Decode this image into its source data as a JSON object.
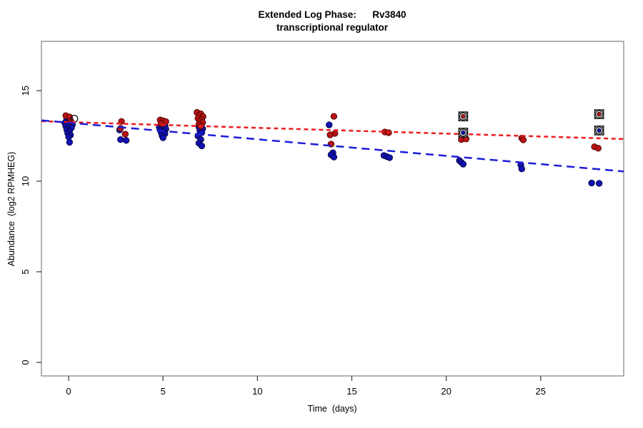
{
  "title": {
    "line1": "Extended Log Phase:      Rv3840",
    "line2": "transcriptional regulator"
  },
  "chart_data": {
    "type": "scatter",
    "title": "Extended Log Phase: Rv3840 transcriptional regulator",
    "xlabel": "Time  (days)",
    "ylabel": "Abundance  (log2 RPMHEG)",
    "xlim": [
      -1.44,
      29.4
    ],
    "ylim": [
      -0.75,
      17.72
    ],
    "x_ticks": [
      0,
      5,
      10,
      15,
      20,
      25
    ],
    "y_ticks": [
      0,
      5,
      10,
      15
    ],
    "grid": false,
    "legend": "none",
    "colors": {
      "red_points": "#b81414",
      "red_edge": "#4a0000",
      "blue_points": "#1212b4",
      "blue_edge": "#000038",
      "red_line": "#ee1c1c",
      "blue_line": "#1c1cd8",
      "marker_black": "#111111"
    },
    "series": [
      {
        "name": "blue-points",
        "type": "points",
        "color": "#1212b4",
        "edge": "#000038",
        "points": [
          [
            -0.1,
            13.42
          ],
          [
            0.1,
            13.35
          ],
          [
            -0.2,
            13.22
          ],
          [
            0.05,
            13.18
          ],
          [
            0.2,
            13.12
          ],
          [
            -0.15,
            13.05
          ],
          [
            0.0,
            13.0
          ],
          [
            0.15,
            12.95
          ],
          [
            -0.1,
            12.85
          ],
          [
            0.05,
            12.78
          ],
          [
            -0.05,
            12.65
          ],
          [
            0.1,
            12.55
          ],
          [
            0.0,
            12.45
          ],
          [
            0.05,
            12.15
          ],
          [
            2.7,
            12.83
          ],
          [
            2.75,
            12.3
          ],
          [
            3.05,
            12.25
          ],
          [
            4.95,
            13.1
          ],
          [
            5.1,
            13.05
          ],
          [
            4.8,
            12.98
          ],
          [
            5.0,
            12.92
          ],
          [
            5.15,
            12.88
          ],
          [
            4.85,
            12.82
          ],
          [
            5.05,
            12.76
          ],
          [
            4.9,
            12.7
          ],
          [
            5.1,
            12.62
          ],
          [
            4.95,
            12.52
          ],
          [
            5.0,
            12.4
          ],
          [
            7.05,
            13.18
          ],
          [
            6.9,
            13.0
          ],
          [
            7.1,
            12.9
          ],
          [
            6.95,
            12.8
          ],
          [
            7.05,
            12.68
          ],
          [
            6.85,
            12.5
          ],
          [
            7.0,
            12.3
          ],
          [
            6.9,
            12.1
          ],
          [
            7.05,
            11.95
          ],
          [
            13.8,
            13.11
          ],
          [
            14.0,
            11.57
          ],
          [
            13.9,
            11.46
          ],
          [
            14.05,
            11.33
          ],
          [
            16.7,
            11.42
          ],
          [
            16.85,
            11.36
          ],
          [
            17.0,
            11.3
          ],
          [
            20.7,
            11.14
          ],
          [
            20.8,
            11.04
          ],
          [
            20.9,
            10.94
          ],
          [
            23.95,
            10.9
          ],
          [
            24.0,
            10.68
          ],
          [
            27.7,
            9.9
          ],
          [
            28.1,
            9.88
          ]
        ]
      },
      {
        "name": "red-points",
        "type": "points",
        "color": "#b81414",
        "edge": "#4a0000",
        "points": [
          [
            -0.15,
            13.62
          ],
          [
            0.05,
            13.55
          ],
          [
            0.12,
            13.3
          ],
          [
            2.8,
            13.3
          ],
          [
            2.75,
            12.92
          ],
          [
            3.0,
            12.6
          ],
          [
            4.85,
            13.38
          ],
          [
            5.0,
            13.34
          ],
          [
            5.15,
            13.29
          ],
          [
            4.9,
            13.18
          ],
          [
            6.8,
            13.8
          ],
          [
            7.0,
            13.72
          ],
          [
            6.9,
            13.62
          ],
          [
            7.12,
            13.57
          ],
          [
            6.85,
            13.47
          ],
          [
            7.05,
            13.42
          ],
          [
            6.95,
            13.32
          ],
          [
            7.1,
            13.24
          ],
          [
            6.9,
            13.14
          ],
          [
            7.0,
            13.04
          ],
          [
            14.05,
            13.58
          ],
          [
            14.1,
            12.64
          ],
          [
            13.85,
            12.56
          ],
          [
            13.9,
            12.05
          ],
          [
            16.75,
            12.72
          ],
          [
            16.95,
            12.68
          ],
          [
            20.8,
            12.3
          ],
          [
            21.05,
            12.33
          ],
          [
            24.0,
            12.38
          ],
          [
            24.08,
            12.28
          ],
          [
            27.85,
            11.9
          ],
          [
            28.05,
            11.82
          ]
        ]
      },
      {
        "name": "outlier-open-circle",
        "type": "open-circle",
        "color": "#111111",
        "points": [
          [
            0.3,
            13.45
          ]
        ]
      },
      {
        "name": "red-trend-line",
        "type": "line",
        "color": "#ee1c1c",
        "dash": "6 4.5",
        "width": 2.5,
        "x": [
          -1.44,
          29.4
        ],
        "y": [
          13.31,
          12.33
        ]
      },
      {
        "name": "blue-trend-line",
        "type": "line",
        "color": "#1c1cd8",
        "dash": "11 7",
        "width": 2.5,
        "x": [
          -1.44,
          29.4
        ],
        "y": [
          13.36,
          10.54
        ]
      },
      {
        "name": "flagged-red",
        "type": "flagged",
        "color": "#b81414",
        "edge": "#111111",
        "points": [
          [
            20.9,
            13.58
          ],
          [
            28.1,
            13.7
          ]
        ]
      },
      {
        "name": "flagged-blue",
        "type": "flagged",
        "color": "#1212b4",
        "edge": "#111111",
        "points": [
          [
            20.9,
            12.68
          ],
          [
            28.1,
            12.8
          ]
        ]
      }
    ]
  }
}
